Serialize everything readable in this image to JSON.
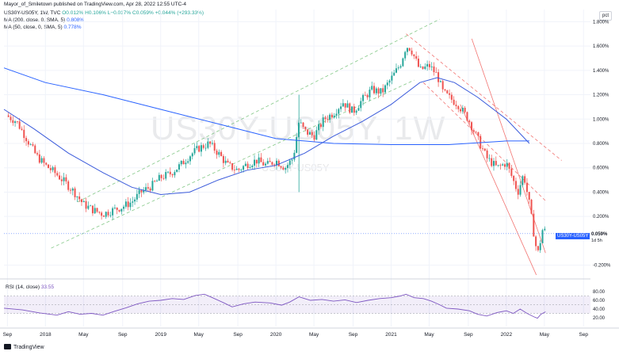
{
  "header": {
    "publisher": "Mayor_of_Smiletown published on TradingView.com, Apr 28, 2022 12:55 UTC-4",
    "symbol_line": {
      "name": "US30Y-US05Y, 1W, TVC",
      "o": "O0.012%",
      "h": "H0.106%",
      "l": "L−0.017%",
      "c": "C0.059%",
      "chg": "+0.044% (+293.33%)"
    },
    "ma200": {
      "label": "MA (200, close, 0, SMA, 5)",
      "value": "0.808%"
    },
    "ma50": {
      "label": "MA (50, close, 0, SMA, 5)",
      "value": "0.778%"
    }
  },
  "watermark": {
    "symbol": "US30Y-US05Y, 1W",
    "sub": "US30Y-US05Y"
  },
  "price_scale": {
    "unit": "pct",
    "last_tag": "US30Y-US05Y",
    "last_value": "0.059%",
    "bar_time": "1d 5h"
  },
  "rsi": {
    "label": "RSI (14, close)",
    "value": "33.55",
    "ticks": [
      "80.00",
      "60.00",
      "40.00",
      "20.00"
    ]
  },
  "footer": {
    "brand": "TradingView"
  },
  "colors": {
    "up": "#26a69a",
    "down": "#ef5350",
    "ma200": "#2962ff",
    "ma50": "#3b5bdb",
    "rsi": "#7e57c2",
    "channel_up": "#66bb6a",
    "channel_down": "#ef5350"
  },
  "chart_data": {
    "type": "candlestick",
    "title": "US30Y-US05Y, 1W",
    "ylabel": "pct",
    "ylim": [
      -0.3,
      1.9
    ],
    "y_ticks": [
      "1.800%",
      "1.600%",
      "1.400%",
      "1.200%",
      "1.000%",
      "0.800%",
      "0.600%",
      "0.400%",
      "0.200%",
      "-0.200%"
    ],
    "y_tick_values": [
      1.8,
      1.6,
      1.4,
      1.2,
      1.0,
      0.8,
      0.6,
      0.4,
      0.2,
      -0.2
    ],
    "x_ticks": [
      "Sep",
      "2018",
      "May",
      "Sep",
      "2019",
      "May",
      "Sep",
      "2020",
      "May",
      "Sep",
      "2021",
      "May",
      "Sep",
      "2022",
      "May",
      "Sep"
    ],
    "x_tick_times": [
      2017.67,
      2018.0,
      2018.33,
      2018.67,
      2019.0,
      2019.33,
      2019.67,
      2020.0,
      2020.33,
      2020.67,
      2021.0,
      2021.33,
      2021.67,
      2022.0,
      2022.33,
      2022.67
    ],
    "xlim": [
      2017.64,
      2022.73
    ],
    "close_path": [
      [
        2017.66,
        1.03
      ],
      [
        2017.75,
        0.98
      ],
      [
        2017.83,
        0.85
      ],
      [
        2017.92,
        0.7
      ],
      [
        2018.0,
        0.62
      ],
      [
        2018.08,
        0.56
      ],
      [
        2018.17,
        0.48
      ],
      [
        2018.25,
        0.4
      ],
      [
        2018.33,
        0.3
      ],
      [
        2018.42,
        0.25
      ],
      [
        2018.5,
        0.22
      ],
      [
        2018.58,
        0.25
      ],
      [
        2018.67,
        0.28
      ],
      [
        2018.75,
        0.32
      ],
      [
        2018.83,
        0.4
      ],
      [
        2018.92,
        0.45
      ],
      [
        2019.0,
        0.52
      ],
      [
        2019.08,
        0.55
      ],
      [
        2019.17,
        0.62
      ],
      [
        2019.25,
        0.7
      ],
      [
        2019.33,
        0.76
      ],
      [
        2019.42,
        0.8
      ],
      [
        2019.5,
        0.72
      ],
      [
        2019.58,
        0.62
      ],
      [
        2019.67,
        0.58
      ],
      [
        2019.75,
        0.63
      ],
      [
        2019.83,
        0.66
      ],
      [
        2019.92,
        0.62
      ],
      [
        2020.0,
        0.66
      ],
      [
        2020.08,
        0.6
      ],
      [
        2020.15,
        0.68
      ],
      [
        2020.2,
        0.98
      ],
      [
        2020.25,
        0.9
      ],
      [
        2020.33,
        0.86
      ],
      [
        2020.42,
        1.0
      ],
      [
        2020.5,
        1.05
      ],
      [
        2020.58,
        1.14
      ],
      [
        2020.67,
        1.06
      ],
      [
        2020.75,
        1.16
      ],
      [
        2020.83,
        1.24
      ],
      [
        2020.92,
        1.22
      ],
      [
        2021.0,
        1.33
      ],
      [
        2021.08,
        1.45
      ],
      [
        2021.13,
        1.6
      ],
      [
        2021.17,
        1.58
      ],
      [
        2021.25,
        1.4
      ],
      [
        2021.33,
        1.44
      ],
      [
        2021.4,
        1.36
      ],
      [
        2021.45,
        1.22
      ],
      [
        2021.5,
        1.18
      ],
      [
        2021.58,
        1.12
      ],
      [
        2021.67,
        1.0
      ],
      [
        2021.75,
        0.84
      ],
      [
        2021.83,
        0.68
      ],
      [
        2021.92,
        0.6
      ],
      [
        2022.0,
        0.64
      ],
      [
        2022.05,
        0.52
      ],
      [
        2022.1,
        0.4
      ],
      [
        2022.15,
        0.55
      ],
      [
        2022.2,
        0.3
      ],
      [
        2022.24,
        0.05
      ],
      [
        2022.27,
        -0.12
      ],
      [
        2022.3,
        0.02
      ],
      [
        2022.32,
        0.12
      ],
      [
        2022.34,
        0.059
      ]
    ],
    "ma200": [
      [
        2017.64,
        1.42
      ],
      [
        2018.0,
        1.3
      ],
      [
        2018.5,
        1.2
      ],
      [
        2019.0,
        1.08
      ],
      [
        2019.5,
        0.96
      ],
      [
        2020.0,
        0.84
      ],
      [
        2020.5,
        0.8
      ],
      [
        2021.0,
        0.79
      ],
      [
        2021.5,
        0.79
      ],
      [
        2022.0,
        0.82
      ],
      [
        2022.2,
        0.82
      ]
    ],
    "ma50": [
      [
        2017.64,
        1.08
      ],
      [
        2017.9,
        0.92
      ],
      [
        2018.2,
        0.72
      ],
      [
        2018.5,
        0.56
      ],
      [
        2018.75,
        0.44
      ],
      [
        2019.0,
        0.38
      ],
      [
        2019.25,
        0.4
      ],
      [
        2019.5,
        0.5
      ],
      [
        2019.75,
        0.58
      ],
      [
        2020.0,
        0.62
      ],
      [
        2020.25,
        0.72
      ],
      [
        2020.5,
        0.86
      ],
      [
        2020.75,
        0.98
      ],
      [
        2021.0,
        1.12
      ],
      [
        2021.25,
        1.3
      ],
      [
        2021.4,
        1.34
      ],
      [
        2021.55,
        1.3
      ],
      [
        2021.75,
        1.18
      ],
      [
        2022.0,
        1.0
      ],
      [
        2022.2,
        0.8
      ]
    ],
    "trendlines": [
      {
        "kind": "channel-up",
        "from": [
          2018.28,
          0.32
        ],
        "to": [
          2021.42,
          1.82
        ],
        "dash": true
      },
      {
        "kind": "channel-up",
        "from": [
          2018.05,
          -0.06
        ],
        "to": [
          2021.2,
          1.32
        ],
        "dash": true
      },
      {
        "kind": "channel-down",
        "from": [
          2021.13,
          1.7
        ],
        "to": [
          2022.48,
          0.66
        ],
        "dash": true
      },
      {
        "kind": "channel-down",
        "from": [
          2021.28,
          1.3
        ],
        "to": [
          2022.35,
          0.32
        ],
        "dash": true
      },
      {
        "kind": "channel-down",
        "from": [
          2021.7,
          1.66
        ],
        "to": [
          2022.34,
          -0.1
        ],
        "dash": false
      },
      {
        "kind": "channel-down",
        "from": [
          2021.6,
          1.12
        ],
        "to": [
          2022.26,
          -0.28
        ],
        "dash": false
      }
    ],
    "rsi_path": [
      [
        2017.64,
        42
      ],
      [
        2017.8,
        38
      ],
      [
        2017.95,
        31
      ],
      [
        2018.1,
        26
      ],
      [
        2018.2,
        34
      ],
      [
        2018.3,
        28
      ],
      [
        2018.4,
        30
      ],
      [
        2018.5,
        26
      ],
      [
        2018.6,
        35
      ],
      [
        2018.7,
        43
      ],
      [
        2018.8,
        52
      ],
      [
        2018.9,
        58
      ],
      [
        2019.0,
        60
      ],
      [
        2019.1,
        64
      ],
      [
        2019.2,
        62
      ],
      [
        2019.3,
        71
      ],
      [
        2019.38,
        74
      ],
      [
        2019.45,
        66
      ],
      [
        2019.55,
        54
      ],
      [
        2019.62,
        45
      ],
      [
        2019.72,
        52
      ],
      [
        2019.82,
        56
      ],
      [
        2019.95,
        54
      ],
      [
        2020.05,
        49
      ],
      [
        2020.12,
        56
      ],
      [
        2020.2,
        68
      ],
      [
        2020.3,
        60
      ],
      [
        2020.4,
        62
      ],
      [
        2020.5,
        58
      ],
      [
        2020.6,
        61
      ],
      [
        2020.7,
        55
      ],
      [
        2020.8,
        60
      ],
      [
        2020.9,
        64
      ],
      [
        2021.0,
        66
      ],
      [
        2021.08,
        70
      ],
      [
        2021.13,
        74
      ],
      [
        2021.2,
        66
      ],
      [
        2021.28,
        64
      ],
      [
        2021.35,
        58
      ],
      [
        2021.42,
        50
      ],
      [
        2021.48,
        42
      ],
      [
        2021.58,
        40
      ],
      [
        2021.68,
        36
      ],
      [
        2021.75,
        28
      ],
      [
        2021.83,
        24
      ],
      [
        2021.92,
        32
      ],
      [
        2022.0,
        36
      ],
      [
        2022.06,
        30
      ],
      [
        2022.12,
        40
      ],
      [
        2022.18,
        30
      ],
      [
        2022.24,
        22
      ],
      [
        2022.27,
        19
      ],
      [
        2022.3,
        28
      ],
      [
        2022.34,
        33.55
      ]
    ]
  }
}
